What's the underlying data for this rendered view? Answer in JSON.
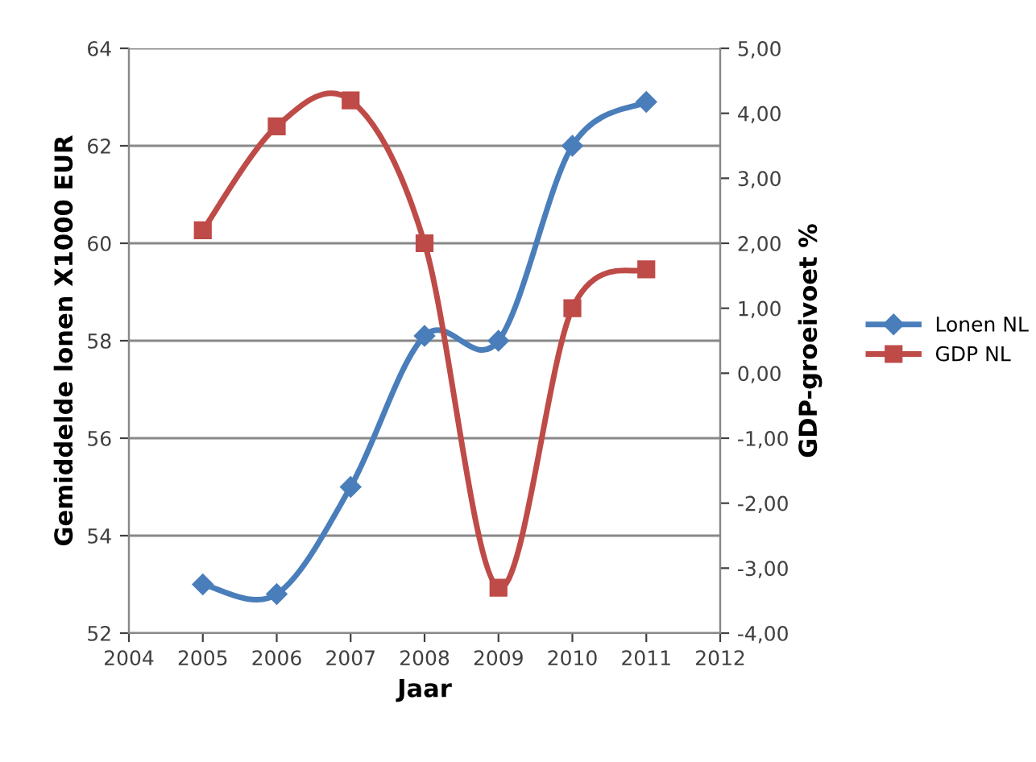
{
  "chart_data": {
    "type": "line",
    "xlabel": "Jaar",
    "ylabel": "Gemiddelde lonen X1000 EUR",
    "y2label": "GDP-groeivoet %",
    "x": [
      2005,
      2006,
      2007,
      2008,
      2009,
      2010,
      2011
    ],
    "series": [
      {
        "name": "Lonen NL",
        "color": "#4a7ebb",
        "marker": "diamond",
        "values": [
          53.0,
          52.8,
          55.0,
          58.1,
          58.0,
          62.0,
          62.9
        ]
      },
      {
        "name": "GDP NL",
        "color": "#be4b48",
        "marker": "square",
        "axis": "y2",
        "values": [
          2.2,
          3.8,
          4.2,
          2.0,
          -3.3,
          1.0,
          1.6
        ]
      }
    ],
    "xlim": [
      2004,
      2012
    ],
    "xticks": [
      2004,
      2005,
      2006,
      2007,
      2008,
      2009,
      2010,
      2011,
      2012
    ],
    "ylim": [
      52,
      64
    ],
    "yticks": [
      52,
      54,
      56,
      58,
      60,
      62,
      64
    ],
    "y2lim": [
      -4,
      5
    ],
    "y2ticks": [
      {
        "value": 5,
        "label": "5,00"
      },
      {
        "value": 4,
        "label": "4,00"
      },
      {
        "value": 3,
        "label": "3,00"
      },
      {
        "value": 2,
        "label": "2,00"
      },
      {
        "value": 1,
        "label": "1,00"
      },
      {
        "value": 0,
        "label": "0,00"
      },
      {
        "value": -1,
        "label": "-1,00"
      },
      {
        "value": -2,
        "label": "-2,00"
      },
      {
        "value": -3,
        "label": "-3,00"
      },
      {
        "value": -4,
        "label": "-4,00"
      }
    ],
    "grid": "y",
    "legend": "right",
    "line_style": "solid"
  }
}
